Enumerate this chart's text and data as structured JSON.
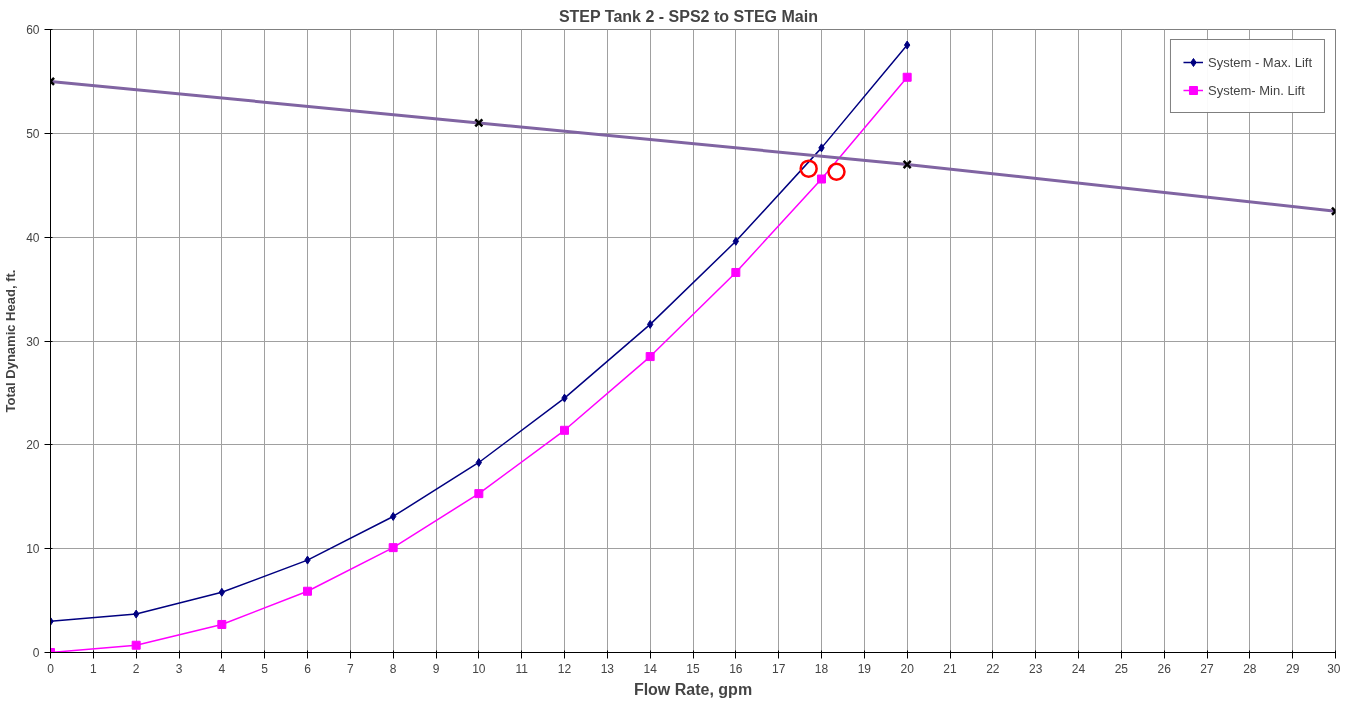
{
  "chart_data": {
    "type": "line",
    "title": "STEP  Tank 2 -  SPS2 to STEG Main",
    "xlabel": "Flow Rate, gpm",
    "ylabel": "Total Dynamic Head, ft.",
    "xlim": [
      0,
      30
    ],
    "ylim": [
      0,
      60
    ],
    "xticks": [
      0,
      1,
      2,
      3,
      4,
      5,
      6,
      7,
      8,
      9,
      10,
      11,
      12,
      13,
      14,
      15,
      16,
      17,
      18,
      19,
      20,
      21,
      22,
      23,
      24,
      25,
      26,
      27,
      28,
      29,
      30
    ],
    "yticks": [
      0,
      10,
      20,
      30,
      40,
      50,
      60
    ],
    "grid": true,
    "legend": "top right",
    "series": [
      {
        "name": "System - Max. Lift",
        "color": "#000080",
        "marker": "diamond",
        "x": [
          0,
          2,
          4,
          6,
          8,
          10,
          12,
          14,
          16,
          18,
          20
        ],
        "values": [
          3.0,
          3.7,
          5.8,
          8.9,
          13.1,
          18.3,
          24.5,
          31.6,
          39.6,
          48.6,
          58.5
        ]
      },
      {
        "name": "System- Min. Lift",
        "color": "#ff00ff",
        "marker": "square",
        "x": [
          0,
          2,
          4,
          6,
          8,
          10,
          12,
          14,
          16,
          18,
          20
        ],
        "values": [
          0,
          0.7,
          2.7,
          5.9,
          10.1,
          15.3,
          21.4,
          28.5,
          36.6,
          45.6,
          55.4
        ]
      },
      {
        "color": "#8064a2",
        "marker": "cross",
        "x": [
          0,
          10,
          20,
          30
        ],
        "values": [
          55,
          51,
          47,
          42.5
        ]
      },
      {
        "type": "scatter",
        "color": "#ff0000",
        "marker": "circle",
        "x": [
          17.7,
          18.35
        ],
        "values": [
          46.6,
          46.3
        ]
      }
    ]
  }
}
